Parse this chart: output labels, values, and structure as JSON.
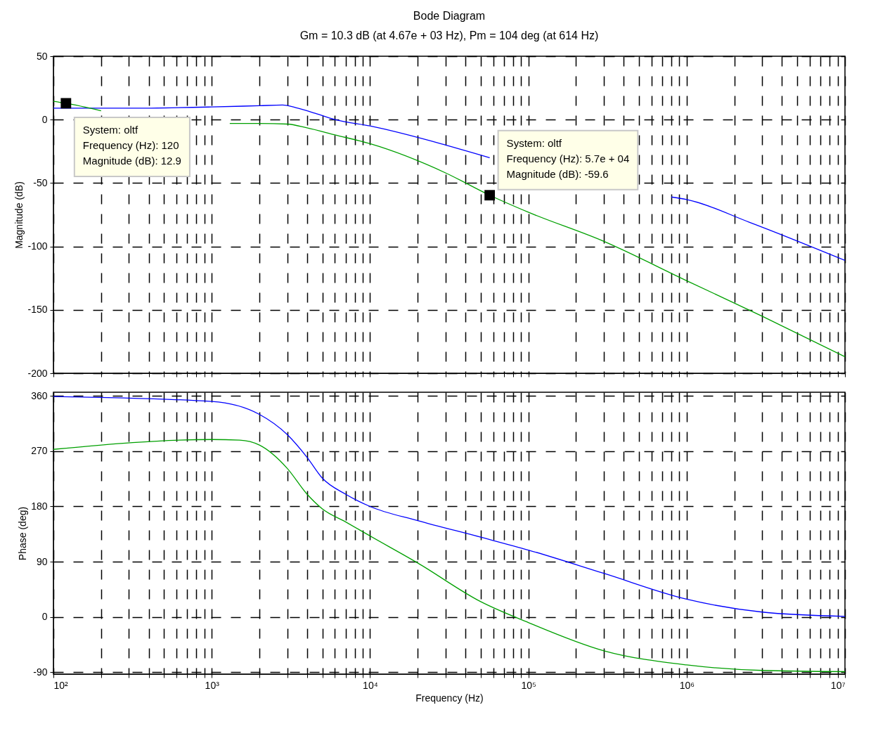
{
  "chart_data": [
    {
      "type": "line",
      "title": "Bode Diagram",
      "subtitle": "Gm = 10.3 dB (at 4.67e + 03 Hz), Pm = 104 deg (at 614 Hz)",
      "ylabel": "Magnitude (dB)",
      "xlim": [
        100,
        10000000
      ],
      "log": "x",
      "xticks": [
        {
          "value": 100,
          "label": null
        },
        {
          "value": 200,
          "label": null
        },
        {
          "value": 300,
          "label": null
        },
        {
          "value": 400,
          "label": null
        },
        {
          "value": 500,
          "label": null
        },
        {
          "value": 600,
          "label": null
        },
        {
          "value": 700,
          "label": null
        },
        {
          "value": 800,
          "label": null
        },
        {
          "value": 900,
          "label": null
        },
        {
          "value": 1000,
          "label": null
        },
        {
          "value": 2000,
          "label": null
        },
        {
          "value": 3000,
          "label": null
        },
        {
          "value": 4000,
          "label": null
        },
        {
          "value": 5000,
          "label": null
        },
        {
          "value": 6000,
          "label": null
        },
        {
          "value": 7000,
          "label": null
        },
        {
          "value": 8000,
          "label": null
        },
        {
          "value": 9000,
          "label": null
        },
        {
          "value": 10000,
          "label": null
        },
        {
          "value": 20000,
          "label": null
        },
        {
          "value": 30000,
          "label": null
        },
        {
          "value": 40000,
          "label": null
        },
        {
          "value": 50000,
          "label": null
        },
        {
          "value": 60000,
          "label": null
        },
        {
          "value": 70000,
          "label": null
        },
        {
          "value": 80000,
          "label": null
        },
        {
          "value": 90000,
          "label": null
        },
        {
          "value": 100000,
          "label": null
        },
        {
          "value": 200000,
          "label": null
        },
        {
          "value": 300000,
          "label": null
        },
        {
          "value": 400000,
          "label": null
        },
        {
          "value": 500000,
          "label": null
        },
        {
          "value": 600000,
          "label": null
        },
        {
          "value": 700000,
          "label": null
        },
        {
          "value": 800000,
          "label": null
        },
        {
          "value": 900000,
          "label": null
        },
        {
          "value": 1000000,
          "label": null
        },
        {
          "value": 2000000,
          "label": null
        },
        {
          "value": 3000000,
          "label": null
        },
        {
          "value": 4000000,
          "label": null
        },
        {
          "value": 5000000,
          "label": null
        },
        {
          "value": 6000000,
          "label": null
        },
        {
          "value": 7000000,
          "label": null
        },
        {
          "value": 8000000,
          "label": null
        },
        {
          "value": 9000000,
          "label": null
        },
        {
          "value": 10000000,
          "label": null
        }
      ],
      "ylim": [
        -200,
        50
      ],
      "yticks": [
        -200,
        -150,
        -100,
        -50,
        0,
        50
      ],
      "grid": true,
      "tick_labels": "y",
      "series": [
        {
          "color": "#0000ff",
          "x": [
            100,
            300,
            1000,
            2000,
            2800,
            3500,
            4500,
            6000,
            10000,
            30000,
            57000,
            100000,
            300000,
            800000,
            1000000,
            2500000,
            10000000
          ],
          "values": [
            9,
            9,
            10,
            11,
            11.5,
            9,
            5,
            0,
            -5,
            -20,
            -30,
            null,
            null,
            -61,
            -63,
            -81,
            -111
          ]
        },
        {
          "color": "#00a000",
          "x": [
            100,
            120,
            200,
            500,
            1000,
            1300,
            2000,
            3000,
            4000,
            6000,
            10000,
            30000,
            57000,
            100000,
            300000,
            1000000,
            3000000,
            10000000
          ],
          "values": [
            14.5,
            12.9,
            7,
            null,
            null,
            -3,
            -3,
            -3.5,
            -6.5,
            -12,
            -19,
            -42,
            -59.6,
            -73,
            -96,
            -127,
            -155,
            -187
          ]
        }
      ],
      "annotations": [
        {
          "text": "System: oltf\nFrequency (Hz): 120\nMagnitude (dB): 12.9",
          "x": 120,
          "y": 12.9
        },
        {
          "text": "System: oltf\nFrequency (Hz): 5.7e + 04\nMagnitude (dB): -59.6",
          "x": 57000,
          "y": -59.6
        }
      ]
    },
    {
      "type": "line",
      "xlabel": "Frequency (Hz)",
      "ylabel": "Phase (deg)",
      "xlim": [
        100,
        10000000
      ],
      "log": "x",
      "xticks": [
        {
          "value": 100,
          "label": "10²"
        },
        {
          "value": 200,
          "label": null
        },
        {
          "value": 300,
          "label": null
        },
        {
          "value": 400,
          "label": null
        },
        {
          "value": 500,
          "label": null
        },
        {
          "value": 600,
          "label": null
        },
        {
          "value": 700,
          "label": null
        },
        {
          "value": 800,
          "label": null
        },
        {
          "value": 900,
          "label": null
        },
        {
          "value": 1000,
          "label": "10³"
        },
        {
          "value": 2000,
          "label": null
        },
        {
          "value": 3000,
          "label": null
        },
        {
          "value": 4000,
          "label": null
        },
        {
          "value": 5000,
          "label": null
        },
        {
          "value": 6000,
          "label": null
        },
        {
          "value": 7000,
          "label": null
        },
        {
          "value": 8000,
          "label": null
        },
        {
          "value": 9000,
          "label": null
        },
        {
          "value": 10000,
          "label": "10⁴"
        },
        {
          "value": 20000,
          "label": null
        },
        {
          "value": 30000,
          "label": null
        },
        {
          "value": 40000,
          "label": null
        },
        {
          "value": 50000,
          "label": null
        },
        {
          "value": 60000,
          "label": null
        },
        {
          "value": 70000,
          "label": null
        },
        {
          "value": 80000,
          "label": null
        },
        {
          "value": 90000,
          "label": null
        },
        {
          "value": 100000,
          "label": "10⁵"
        },
        {
          "value": 200000,
          "label": null
        },
        {
          "value": 300000,
          "label": null
        },
        {
          "value": 400000,
          "label": null
        },
        {
          "value": 500000,
          "label": null
        },
        {
          "value": 600000,
          "label": null
        },
        {
          "value": 700000,
          "label": null
        },
        {
          "value": 800000,
          "label": null
        },
        {
          "value": 900000,
          "label": null
        },
        {
          "value": 1000000,
          "label": "10⁶"
        },
        {
          "value": 2000000,
          "label": null
        },
        {
          "value": 3000000,
          "label": null
        },
        {
          "value": 4000000,
          "label": null
        },
        {
          "value": 5000000,
          "label": null
        },
        {
          "value": 6000000,
          "label": null
        },
        {
          "value": 7000000,
          "label": null
        },
        {
          "value": 8000000,
          "label": null
        },
        {
          "value": 9000000,
          "label": null
        },
        {
          "value": 10000000,
          "label": "10⁷"
        }
      ],
      "ylim": [
        -93,
        366
      ],
      "yticks": [
        -90,
        0,
        90,
        180,
        270,
        360
      ],
      "grid": true,
      "series": [
        {
          "color": "#0000ff",
          "x": [
            100,
            1000,
            2000,
            3000,
            4000,
            5000,
            7000,
            10000,
            20000,
            50000,
            100000,
            300000,
            1000000,
            3000000,
            10000000
          ],
          "values": [
            359,
            351,
            330,
            297,
            260,
            226,
            200,
            180,
            157,
            130,
            109,
            71,
            29,
            8,
            1
          ]
        },
        {
          "color": "#00a000",
          "x": [
            100,
            1000,
            1500,
            2000,
            3000,
            4000,
            5000,
            7000,
            10000,
            20000,
            50000,
            100000,
            300000,
            1000000,
            3000000,
            10000000
          ],
          "values": [
            273,
            289,
            288,
            280,
            242,
            200,
            176,
            155,
            132,
            88,
            25,
            -9,
            -55,
            -78,
            -87,
            -89
          ]
        }
      ]
    }
  ]
}
